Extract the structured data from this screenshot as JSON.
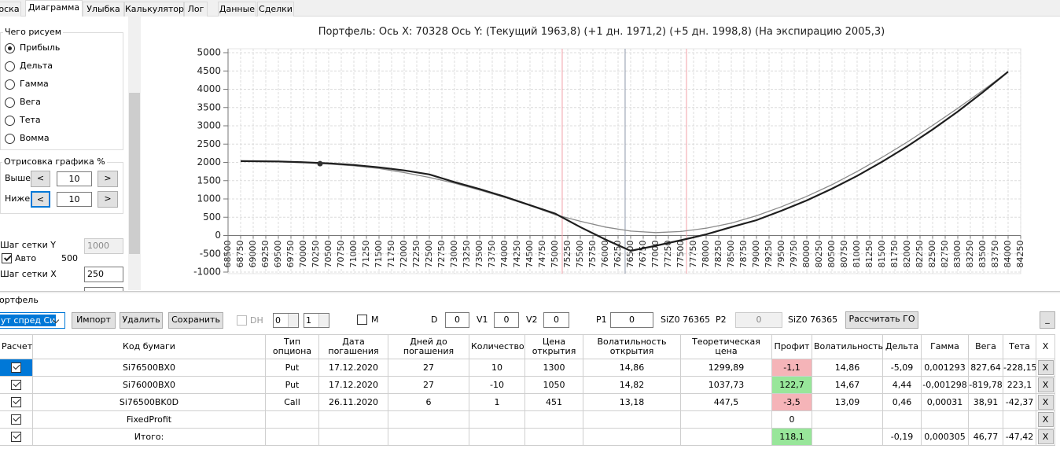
{
  "tabs": [
    "оска",
    "Диаграмма",
    "Улыбка",
    "Калькулятор",
    "Лог",
    "Данные",
    "Сделки"
  ],
  "left_panel": {
    "draw_group": "Чего рисуем",
    "draw_options": [
      "Прибыль",
      "Дельта",
      "Гамма",
      "Вега",
      "Тета",
      "Вомма"
    ],
    "render_group": "Отрисовка графика %",
    "above_label": "Выше",
    "above_value": 10,
    "below_label": "Ниже",
    "below_value": 10,
    "dec": "<",
    "inc": ">",
    "grid_y_label": "Шаг сетки Y",
    "grid_y_value": 1000,
    "auto_label": "Авто",
    "auto_value": 500,
    "grid_x_label": "Шаг сетки X",
    "grid_x_value": 250
  },
  "chart_data": {
    "type": "line",
    "title": "Портфель: Ось X: 70328 Ось Y:  (Текущий 1963,8)  (+1 дн. 1971,2)  (+5 дн. 1998,8)  (На экспирацию 2005,3)",
    "x": [
      68750,
      69500,
      70000,
      70500,
      71000,
      71500,
      72000,
      72500,
      73000,
      73500,
      74000,
      74500,
      75000,
      75500,
      76000,
      76500,
      77000,
      77500,
      78000,
      78500,
      79000,
      79500,
      80000,
      80500,
      81000,
      81500,
      82000,
      82500,
      83000,
      83500,
      84000
    ],
    "series": [
      {
        "color": "#1e1e1e",
        "values": [
          2035,
          2025,
          2005,
          1975,
          1930,
          1865,
          1780,
          1670,
          1460,
          1270,
          1060,
          830,
          600,
          230,
          -110,
          -420,
          -280,
          -130,
          30,
          230,
          420,
          680,
          960,
          1280,
          1630,
          2020,
          2440,
          2900,
          3390,
          3920,
          4480
        ]
      },
      {
        "color": "#8a8a8a",
        "values": [
          2030,
          2015,
          1990,
          1955,
          1905,
          1835,
          1720,
          1590,
          1430,
          1240,
          1040,
          820,
          570,
          390,
          230,
          120,
          80,
          110,
          200,
          340,
          540,
          790,
          1070,
          1390,
          1750,
          2140,
          2560,
          3010,
          3480,
          3970,
          4480
        ]
      }
    ],
    "xlim": [
      68500,
      84250
    ],
    "ylim": [
      -1000,
      5000
    ],
    "xticks": [
      68500,
      68750,
      69000,
      69250,
      69500,
      69750,
      70000,
      70250,
      70500,
      70750,
      71000,
      71250,
      71500,
      71750,
      72000,
      72250,
      72500,
      72750,
      73000,
      73250,
      73500,
      73750,
      74000,
      74250,
      74500,
      74750,
      75000,
      75250,
      75500,
      75750,
      76000,
      76250,
      76500,
      76750,
      77000,
      77250,
      77500,
      77750,
      78000,
      78250,
      78500,
      78750,
      79000,
      79250,
      79500,
      79750,
      80000,
      80250,
      80500,
      80750,
      81000,
      81250,
      81500,
      81750,
      82000,
      82250,
      82500,
      82750,
      83000,
      83250,
      83500,
      83750,
      84000,
      84250
    ],
    "yticks": [
      -1000,
      -500,
      0,
      500,
      1000,
      1500,
      2000,
      2500,
      3000,
      3500,
      4000,
      4500,
      5000
    ],
    "grid": true,
    "vlines": [
      {
        "x": 75140,
        "color": "#f2a0a8"
      },
      {
        "x": 76390,
        "color": "#8c96a8"
      },
      {
        "x": 77610,
        "color": "#f2a0a8"
      }
    ],
    "marker": {
      "x": 70328,
      "y": 1963.8
    }
  },
  "portfolio": {
    "label": "ортфель",
    "strategy": "ут спред Си",
    "import": "Импорт",
    "delete": "Удалить",
    "save": "Сохранить",
    "dh_label": "DH",
    "spin1": 0,
    "spin2": 1,
    "m_label": "M",
    "d_label": "D",
    "d_value": 0,
    "v1_label": "V1",
    "v1_value": 0,
    "v2_label": "V2",
    "v2_value": 0,
    "p1_label": "P1",
    "p1_value": 0,
    "p1_instrument": "SiZ0 76365",
    "p2_label": "P2",
    "p2_value": 0,
    "p2_instrument": "SiZ0 76365",
    "calc": "Рассчитать ГО",
    "minimize": "_"
  },
  "table": {
    "columns": [
      "Расчет",
      "Код бумаги",
      "Тип опциона",
      "Дата погашения",
      "Дней до погашения",
      "Количество",
      "Цена открытия",
      "Волатильность открытия",
      "Теоретическая цена",
      "Профит",
      "Волатильность",
      "Дельта",
      "Гамма",
      "Вега",
      "Тета",
      "X"
    ],
    "rows": [
      [
        null,
        "Si76500BX0",
        "Put",
        "17.12.2020",
        "27",
        "10",
        "1300",
        "14,86",
        "1299,89",
        "-1,1",
        "14,86",
        "-5,09",
        "0,001293",
        "827,64",
        "-228,15",
        "X"
      ],
      [
        null,
        "Si76000BX0",
        "Put",
        "17.12.2020",
        "27",
        "-10",
        "1050",
        "14,82",
        "1037,73",
        "122,7",
        "14,67",
        "4,44",
        "-0,001298",
        "-819,78",
        "223,1",
        "X"
      ],
      [
        null,
        "Si76500BK0D",
        "Call",
        "26.11.2020",
        "6",
        "1",
        "451",
        "13,18",
        "447,5",
        "-3,5",
        "13,09",
        "0,46",
        "0,00031",
        "38,91",
        "-42,37",
        "X"
      ],
      [
        null,
        "FixedProfit",
        null,
        null,
        null,
        null,
        null,
        null,
        null,
        "0",
        null,
        null,
        null,
        null,
        null,
        "X"
      ],
      [
        null,
        "Итого:",
        null,
        null,
        null,
        null,
        null,
        null,
        null,
        "118,1",
        null,
        "-0,19",
        "0,000305",
        "46,77",
        "-47,42",
        "X"
      ]
    ],
    "profit_colors": [
      "#f5b4b8",
      "#98e69a",
      "#f5b4b8",
      null,
      "#98e69a"
    ]
  }
}
